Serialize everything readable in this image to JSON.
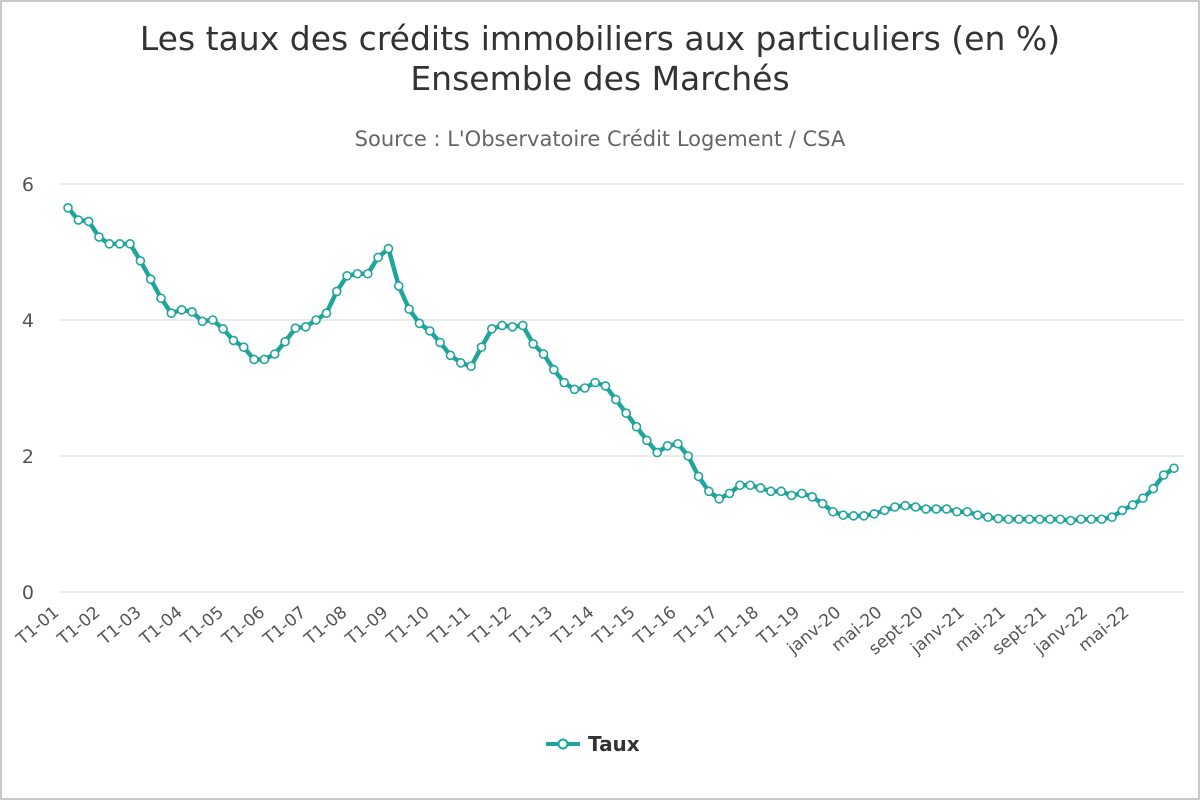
{
  "chart_data": {
    "type": "line",
    "title_line1": "Les taux des crédits immobiliers aux particuliers (en %)",
    "title_line2": "Ensemble des Marchés",
    "subtitle": "Source : L'Observatoire Crédit Logement / CSA",
    "ylim": [
      0,
      6
    ],
    "yticks": [
      0,
      2,
      4,
      6
    ],
    "grid": true,
    "legend_position": "bottom-center",
    "color": "#1fa59b",
    "x_labels": [
      "T1-01",
      "T1-02",
      "T1-03",
      "T1-04",
      "T1-05",
      "T1-06",
      "T1-07",
      "T1-08",
      "T1-09",
      "T1-10",
      "T1-11",
      "T1-12",
      "T1-13",
      "T1-14",
      "T1-15",
      "T1-16",
      "T1-17",
      "T1-18",
      "T1-19",
      "janv-20",
      "mai-20",
      "sept-20",
      "janv-21",
      "mai-21",
      "sept-21",
      "janv-22",
      "mai-22"
    ],
    "series": [
      {
        "name": "Taux",
        "values": [
          5.65,
          5.47,
          5.45,
          5.22,
          5.12,
          5.12,
          5.12,
          4.87,
          4.6,
          4.32,
          4.1,
          4.15,
          4.12,
          3.98,
          4.0,
          3.87,
          3.7,
          3.6,
          3.42,
          3.42,
          3.5,
          3.68,
          3.88,
          3.9,
          4.0,
          4.1,
          4.42,
          4.65,
          4.68,
          4.68,
          4.92,
          5.05,
          4.5,
          4.16,
          3.95,
          3.84,
          3.67,
          3.48,
          3.37,
          3.32,
          3.6,
          3.87,
          3.92,
          3.9,
          3.92,
          3.65,
          3.5,
          3.27,
          3.08,
          2.98,
          3.0,
          3.08,
          3.03,
          2.83,
          2.63,
          2.43,
          2.23,
          2.05,
          2.15,
          2.18,
          2.0,
          1.7,
          1.48,
          1.37,
          1.45,
          1.57,
          1.57,
          1.53,
          1.48,
          1.48,
          1.42,
          1.45,
          1.4,
          1.3,
          1.18,
          1.13,
          1.12,
          1.12,
          1.15,
          1.2,
          1.25,
          1.27,
          1.25,
          1.22,
          1.22,
          1.22,
          1.18,
          1.18,
          1.13,
          1.1,
          1.08,
          1.07,
          1.07,
          1.07,
          1.07,
          1.07,
          1.07,
          1.05,
          1.07,
          1.07,
          1.07,
          1.1,
          1.2,
          1.28,
          1.38,
          1.52,
          1.72,
          1.82
        ]
      }
    ]
  }
}
